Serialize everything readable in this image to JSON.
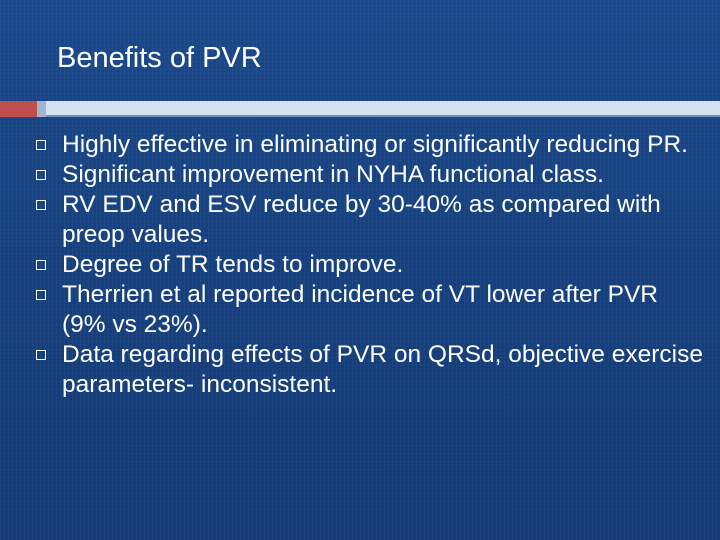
{
  "slide": {
    "title": "Benefits of PVR",
    "bullets": [
      "Highly effective in eliminating or significantly reducing PR.",
      "Significant improvement in NYHA functional class.",
      "RV EDV and ESV reduce by 30-40% as compared with preop values.",
      "Degree of TR tends to improve.",
      "Therrien et al reported incidence of VT lower after PVR (9% vs 23%).",
      "Data regarding effects of PVR on QRSd, objective exercise parameters- inconsistent."
    ]
  },
  "colors": {
    "background": "#17417f",
    "text": "#ffffff",
    "accent_red": "#c0504d",
    "divider_light": "#d6e2ef"
  },
  "icons": {
    "bullet": "hollow-square-icon"
  }
}
